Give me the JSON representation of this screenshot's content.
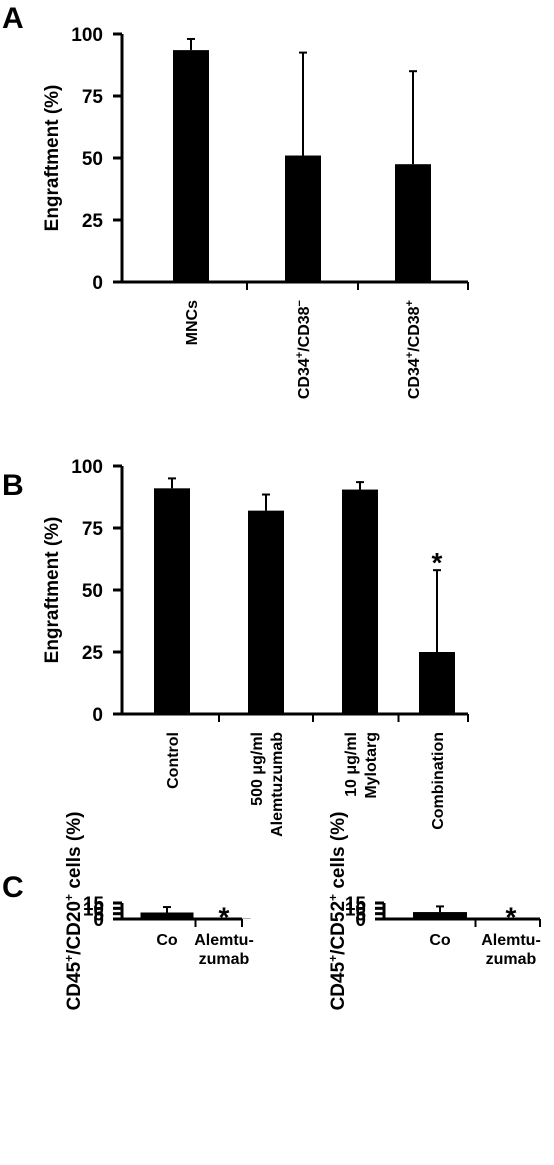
{
  "chart_data": [
    {
      "panel": "A",
      "type": "bar",
      "ylabel": "Engraftment (%)",
      "ylim": [
        0,
        100
      ],
      "yticks": [
        "0",
        "25",
        "50",
        "75",
        "100"
      ],
      "categories": [
        {
          "lines": [
            {
              "t": "MNCs"
            }
          ]
        },
        {
          "lines": [
            {
              "t": "CD34",
              "sup": "+"
            },
            {
              "t": "/CD38"
            },
            {
              "t": "",
              "sup": "−"
            }
          ]
        },
        {
          "lines": [
            {
              "t": "CD34",
              "sup": "+"
            },
            {
              "t": "/CD38"
            },
            {
              "t": "",
              "sup": "+"
            }
          ]
        }
      ],
      "values": [
        93.5,
        51,
        47.5
      ],
      "errors": [
        4.5,
        41.5,
        37.5
      ],
      "significance": [
        "",
        "",
        ""
      ]
    },
    {
      "panel": "B",
      "type": "bar",
      "ylabel": "Engraftment (%)",
      "ylim": [
        0,
        100
      ],
      "yticks": [
        "0",
        "25",
        "50",
        "75",
        "100"
      ],
      "categories": [
        {
          "lines": [
            {
              "t": "Control"
            }
          ]
        },
        {
          "lines": [
            {
              "t": "500 μg/ml"
            },
            {
              "t": "Alemtuzumab"
            }
          ]
        },
        {
          "lines": [
            {
              "t": "10 μg/ml"
            },
            {
              "t": "Mylotarg"
            }
          ]
        },
        {
          "lines": [
            {
              "t": "Combination"
            }
          ]
        }
      ],
      "values": [
        91,
        82,
        90.5,
        25
      ],
      "errors": [
        4,
        6.5,
        3,
        33
      ],
      "significance": [
        "",
        "",
        "",
        "*"
      ]
    },
    {
      "panel": "C",
      "type": "bar",
      "ylabel_parts": [
        {
          "t": "CD45"
        },
        {
          "t": "+",
          "sup": true
        },
        {
          "t": "/CD20"
        },
        {
          "t": "+",
          "sup": true
        },
        {
          "t": " cells (%)"
        }
      ],
      "ylim": [
        0,
        15
      ],
      "yticks": [
        "0",
        "5",
        "10",
        "15"
      ],
      "categories": [
        {
          "lines": [
            "Co"
          ]
        },
        {
          "lines": [
            "Alemtu-",
            "zumab"
          ]
        }
      ],
      "values": [
        6.1,
        0.3
      ],
      "errors": [
        5.1,
        0
      ],
      "significance": [
        "",
        "*"
      ]
    },
    {
      "panel": "",
      "type": "bar",
      "ylabel_parts": [
        {
          "t": "CD45"
        },
        {
          "t": "+",
          "sup": true
        },
        {
          "t": "/CD52"
        },
        {
          "t": "+",
          "sup": true
        },
        {
          "t": " cells (%)"
        }
      ],
      "ylim": [
        0,
        15
      ],
      "yticks": [
        "0",
        "5",
        "10",
        "15"
      ],
      "categories": [
        {
          "lines": [
            "Co"
          ]
        },
        {
          "lines": [
            "Alemtu-",
            "zumab"
          ]
        }
      ],
      "values": [
        6.5,
        0.3
      ],
      "errors": [
        5.3,
        0
      ],
      "significance": [
        "",
        "*"
      ]
    }
  ],
  "colors": {
    "bars": "#000000",
    "axes": "#000000"
  }
}
